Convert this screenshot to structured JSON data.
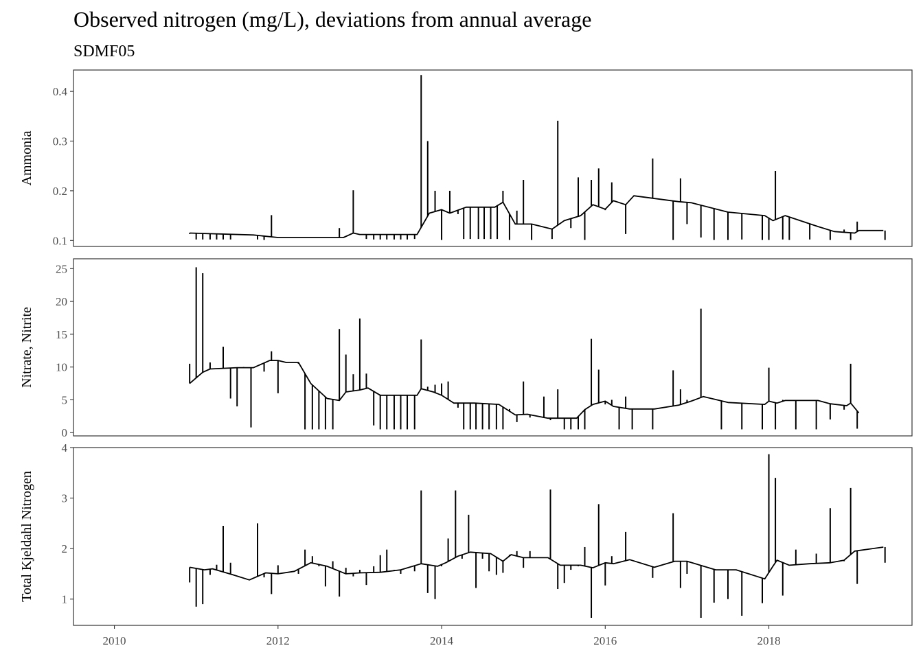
{
  "chart_data": {
    "type": "line",
    "title": "Observed nitrogen (mg/L), deviations from annual average",
    "subtitle": "SDMF05",
    "xlim": [
      2009.5,
      2019.75
    ],
    "x_ticks": [
      2010,
      2012,
      2014,
      2016,
      2018
    ],
    "x_tick_labels": [
      "2010",
      "2012",
      "2014",
      "2016",
      "2018"
    ],
    "panels": [
      {
        "id": "ammonia",
        "ylabel": "Ammonia",
        "ylim": [
          0.088,
          0.443
        ],
        "y_ticks": [
          0.1,
          0.2,
          0.3,
          0.4
        ],
        "y_tick_labels": [
          "0.1",
          "0.2",
          "0.3",
          "0.4"
        ],
        "average": {
          "x": [
            2010.92,
            2011.7,
            2012.0,
            2012.8,
            2012.92,
            2013.0,
            2013.7,
            2013.85,
            2014.0,
            2014.1,
            2014.3,
            2014.5,
            2014.65,
            2014.75,
            2014.9,
            2015.1,
            2015.35,
            2015.5,
            2015.7,
            2015.85,
            2016.0,
            2016.1,
            2016.25,
            2016.35,
            2016.9,
            2017.05,
            2017.5,
            2017.95,
            2018.05,
            2018.2,
            2018.6,
            2018.8,
            2019.05,
            2019.1,
            2019.4
          ],
          "y": [
            0.115,
            0.111,
            0.106,
            0.106,
            0.115,
            0.112,
            0.112,
            0.155,
            0.162,
            0.155,
            0.167,
            0.167,
            0.167,
            0.177,
            0.133,
            0.133,
            0.123,
            0.14,
            0.15,
            0.172,
            0.163,
            0.18,
            0.172,
            0.19,
            0.178,
            0.176,
            0.157,
            0.15,
            0.14,
            0.15,
            0.128,
            0.118,
            0.115,
            0.12,
            0.12
          ]
        },
        "observations": {
          "x": [
            2010.92,
            2011.0,
            2011.08,
            2011.17,
            2011.25,
            2011.33,
            2011.42,
            2011.75,
            2011.83,
            2011.92,
            2012.75,
            2012.83,
            2012.92,
            2013.08,
            2013.17,
            2013.25,
            2013.33,
            2013.42,
            2013.5,
            2013.58,
            2013.67,
            2013.75,
            2013.83,
            2013.92,
            2014.0,
            2014.1,
            2014.2,
            2014.27,
            2014.35,
            2014.45,
            2014.52,
            2014.6,
            2014.68,
            2014.75,
            2014.83,
            2014.92,
            2015.0,
            2015.1,
            2015.35,
            2015.42,
            2015.58,
            2015.67,
            2015.75,
            2015.83,
            2015.92,
            2016.0,
            2016.08,
            2016.25,
            2016.58,
            2016.83,
            2016.92,
            2017.0,
            2017.17,
            2017.33,
            2017.5,
            2017.67,
            2017.92,
            2018.0,
            2018.08,
            2018.17,
            2018.25,
            2018.5,
            2018.75,
            2018.92,
            2019.0,
            2019.08,
            2019.42
          ],
          "y": [
            0.113,
            0.102,
            0.102,
            0.102,
            0.102,
            0.102,
            0.102,
            0.102,
            0.101,
            0.151,
            0.125,
            0.108,
            0.201,
            0.103,
            0.102,
            0.102,
            0.102,
            0.102,
            0.102,
            0.102,
            0.103,
            0.433,
            0.3,
            0.2,
            0.101,
            0.2,
            0.153,
            0.103,
            0.103,
            0.103,
            0.103,
            0.103,
            0.103,
            0.2,
            0.101,
            0.16,
            0.222,
            0.101,
            0.103,
            0.341,
            0.125,
            0.227,
            0.101,
            0.222,
            0.245,
            0.161,
            0.217,
            0.113,
            0.265,
            0.101,
            0.225,
            0.133,
            0.106,
            0.101,
            0.101,
            0.102,
            0.101,
            0.101,
            0.24,
            0.102,
            0.101,
            0.102,
            0.101,
            0.122,
            0.101,
            0.138,
            0.101
          ]
        }
      },
      {
        "id": "nitrate-nitrite",
        "ylabel": "Nitrate, Nitrite",
        "ylim": [
          -0.5,
          26.5
        ],
        "y_ticks": [
          0,
          5,
          10,
          15,
          20,
          25
        ],
        "y_tick_labels": [
          "0",
          "5",
          "10",
          "15",
          "20",
          "25"
        ],
        "average": {
          "x": [
            2010.92,
            2011.08,
            2011.17,
            2011.5,
            2011.7,
            2011.9,
            2012.0,
            2012.1,
            2012.25,
            2012.4,
            2012.6,
            2012.75,
            2012.83,
            2013.0,
            2013.1,
            2013.25,
            2013.7,
            2013.75,
            2013.9,
            2014.0,
            2014.15,
            2014.4,
            2014.7,
            2014.8,
            2014.9,
            2015.05,
            2015.3,
            2015.4,
            2015.65,
            2015.75,
            2015.85,
            2016.0,
            2016.1,
            2016.3,
            2016.6,
            2016.9,
            2017.05,
            2017.2,
            2017.5,
            2017.95,
            2018.0,
            2018.1,
            2018.2,
            2018.6,
            2018.75,
            2018.95,
            2019.0,
            2019.1
          ],
          "y": [
            7.5,
            9.2,
            9.7,
            9.9,
            9.9,
            11.0,
            11.0,
            10.7,
            10.7,
            7.5,
            5.2,
            4.9,
            6.2,
            6.5,
            6.8,
            5.7,
            5.7,
            6.7,
            6.2,
            5.7,
            4.5,
            4.5,
            4.3,
            3.5,
            2.7,
            2.8,
            2.2,
            2.2,
            2.2,
            3.5,
            4.3,
            4.8,
            4.0,
            3.6,
            3.6,
            4.2,
            4.8,
            5.5,
            4.6,
            4.3,
            4.8,
            4.5,
            4.9,
            4.9,
            4.4,
            4.1,
            4.5,
            3.0
          ]
        },
        "observations": {
          "x": [
            2010.92,
            2011.0,
            2011.08,
            2011.17,
            2011.33,
            2011.42,
            2011.5,
            2011.58,
            2011.67,
            2011.83,
            2011.92,
            2012.0,
            2012.25,
            2012.33,
            2012.42,
            2012.5,
            2012.58,
            2012.67,
            2012.75,
            2012.83,
            2012.92,
            2013.0,
            2013.08,
            2013.17,
            2013.25,
            2013.33,
            2013.42,
            2013.5,
            2013.58,
            2013.67,
            2013.75,
            2013.83,
            2013.92,
            2014.0,
            2014.08,
            2014.2,
            2014.27,
            2014.35,
            2014.42,
            2014.5,
            2014.58,
            2014.67,
            2014.75,
            2014.83,
            2014.92,
            2015.0,
            2015.08,
            2015.25,
            2015.33,
            2015.42,
            2015.5,
            2015.58,
            2015.67,
            2015.75,
            2015.83,
            2015.92,
            2016.0,
            2016.08,
            2016.17,
            2016.25,
            2016.33,
            2016.58,
            2016.83,
            2016.92,
            2017.0,
            2017.17,
            2017.42,
            2017.67,
            2017.92,
            2018.0,
            2018.08,
            2018.17,
            2018.33,
            2018.58,
            2018.75,
            2018.92,
            2019.0,
            2019.08
          ],
          "y": [
            10.5,
            25.2,
            24.3,
            10.7,
            13.1,
            5.2,
            4.0,
            10.0,
            0.8,
            9.3,
            12.4,
            6.0,
            10.5,
            0.5,
            0.5,
            0.5,
            0.5,
            0.5,
            15.8,
            11.9,
            8.9,
            17.4,
            9.0,
            1.1,
            0.5,
            0.5,
            0.5,
            0.5,
            0.5,
            0.5,
            14.2,
            7.0,
            7.3,
            7.5,
            7.8,
            3.8,
            0.5,
            0.5,
            0.5,
            0.5,
            0.5,
            0.5,
            0.5,
            3.6,
            1.6,
            7.8,
            2.3,
            5.5,
            1.9,
            6.6,
            0.5,
            0.5,
            0.5,
            0.5,
            14.3,
            9.6,
            4.3,
            5.0,
            0.5,
            5.5,
            0.5,
            0.5,
            9.5,
            6.6,
            5.0,
            18.9,
            0.5,
            0.5,
            0.5,
            9.9,
            0.5,
            5.0,
            0.5,
            0.5,
            2.0,
            3.5,
            10.5,
            0.6
          ]
        }
      },
      {
        "id": "total-kjeldahl-nitrogen",
        "ylabel": "Total Kjeldahl Nitrogen",
        "ylim": [
          0.48,
          4.0
        ],
        "y_ticks": [
          1,
          2,
          3,
          4
        ],
        "y_tick_labels": [
          "1",
          "2",
          "3",
          "4"
        ],
        "average": {
          "x": [
            2010.92,
            2011.1,
            2011.2,
            2011.45,
            2011.65,
            2011.85,
            2012.0,
            2012.2,
            2012.4,
            2012.6,
            2012.83,
            2013.0,
            2013.25,
            2013.5,
            2013.75,
            2013.95,
            2014.05,
            2014.2,
            2014.35,
            2014.6,
            2014.75,
            2014.85,
            2015.0,
            2015.3,
            2015.45,
            2015.7,
            2015.85,
            2016.0,
            2016.1,
            2016.3,
            2016.6,
            2016.85,
            2017.0,
            2017.35,
            2017.6,
            2017.95,
            2018.05,
            2018.1,
            2018.25,
            2018.5,
            2018.75,
            2018.92,
            2019.05,
            2019.4
          ],
          "y": [
            1.63,
            1.58,
            1.6,
            1.48,
            1.38,
            1.52,
            1.5,
            1.55,
            1.72,
            1.65,
            1.5,
            1.52,
            1.53,
            1.58,
            1.7,
            1.65,
            1.72,
            1.85,
            1.93,
            1.9,
            1.75,
            1.88,
            1.82,
            1.82,
            1.67,
            1.67,
            1.62,
            1.72,
            1.7,
            1.78,
            1.63,
            1.75,
            1.75,
            1.58,
            1.58,
            1.4,
            1.65,
            1.77,
            1.67,
            1.7,
            1.72,
            1.77,
            1.95,
            2.03
          ]
        },
        "observations": {
          "x": [
            2010.92,
            2011.0,
            2011.08,
            2011.17,
            2011.25,
            2011.33,
            2011.42,
            2011.75,
            2011.83,
            2011.92,
            2012.0,
            2012.25,
            2012.33,
            2012.42,
            2012.5,
            2012.58,
            2012.67,
            2012.75,
            2012.83,
            2012.92,
            2013.0,
            2013.08,
            2013.17,
            2013.25,
            2013.33,
            2013.42,
            2013.5,
            2013.58,
            2013.67,
            2013.75,
            2013.83,
            2013.92,
            2014.0,
            2014.08,
            2014.17,
            2014.25,
            2014.33,
            2014.42,
            2014.5,
            2014.58,
            2014.67,
            2014.75,
            2014.83,
            2014.92,
            2015.0,
            2015.08,
            2015.33,
            2015.42,
            2015.5,
            2015.58,
            2015.67,
            2015.75,
            2015.83,
            2015.92,
            2016.0,
            2016.08,
            2016.25,
            2016.58,
            2016.83,
            2016.92,
            2017.0,
            2017.17,
            2017.33,
            2017.5,
            2017.67,
            2017.92,
            2018.0,
            2018.08,
            2018.17,
            2018.33,
            2018.58,
            2018.75,
            2018.92,
            2019.0,
            2019.08,
            2019.42
          ],
          "y": [
            1.33,
            0.85,
            0.9,
            1.48,
            1.68,
            2.45,
            1.72,
            2.5,
            1.43,
            1.1,
            1.67,
            1.5,
            1.98,
            1.85,
            1.65,
            1.25,
            1.75,
            1.05,
            1.62,
            1.45,
            1.58,
            1.28,
            1.65,
            1.87,
            1.98,
            1.58,
            1.5,
            1.62,
            1.55,
            3.15,
            1.12,
            1.0,
            1.65,
            2.2,
            3.15,
            1.8,
            2.67,
            1.22,
            1.8,
            1.55,
            1.48,
            1.52,
            1.88,
            1.95,
            1.62,
            1.95,
            3.17,
            1.2,
            1.32,
            1.58,
            1.65,
            2.03,
            0.63,
            2.88,
            1.27,
            1.85,
            2.33,
            1.42,
            2.7,
            1.22,
            1.5,
            0.63,
            0.93,
            1.0,
            0.67,
            0.92,
            3.87,
            3.4,
            1.07,
            1.98,
            1.9,
            2.8,
            1.75,
            3.2,
            1.3,
            1.72
          ]
        }
      }
    ]
  }
}
